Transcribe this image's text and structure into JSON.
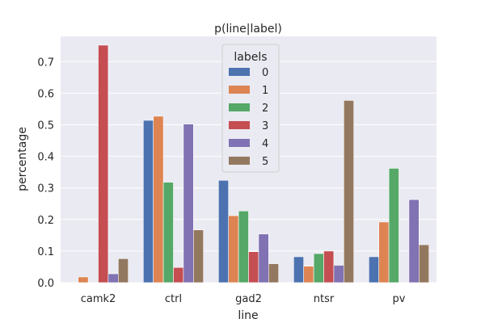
{
  "chart_data": {
    "type": "bar",
    "title": "p(line|label)",
    "xlabel": "line",
    "ylabel": "percentage",
    "categories": [
      "camk2",
      "ctrl",
      "gad2",
      "ntsr",
      "pv"
    ],
    "ylim": [
      0,
      0.78
    ],
    "yticks": [
      "0.0",
      "0.1",
      "0.2",
      "0.3",
      "0.4",
      "0.5",
      "0.6",
      "0.7"
    ],
    "grid": true,
    "legend": {
      "title": "labels",
      "placement": "top-center"
    },
    "series": [
      {
        "name": "0",
        "color": "#4c72b0",
        "values": [
          0.0,
          0.514,
          0.324,
          0.082,
          0.082
        ]
      },
      {
        "name": "1",
        "color": "#dd8452",
        "values": [
          0.018,
          0.527,
          0.212,
          0.052,
          0.192
        ]
      },
      {
        "name": "2",
        "color": "#55a868",
        "values": [
          0.0,
          0.318,
          0.227,
          0.092,
          0.362
        ]
      },
      {
        "name": "3",
        "color": "#c44e52",
        "values": [
          0.752,
          0.048,
          0.098,
          0.1,
          0.0
        ]
      },
      {
        "name": "4",
        "color": "#8172b3",
        "values": [
          0.028,
          0.502,
          0.154,
          0.055,
          0.263
        ]
      },
      {
        "name": "5",
        "color": "#937860",
        "values": [
          0.076,
          0.167,
          0.06,
          0.577,
          0.12
        ]
      }
    ]
  }
}
